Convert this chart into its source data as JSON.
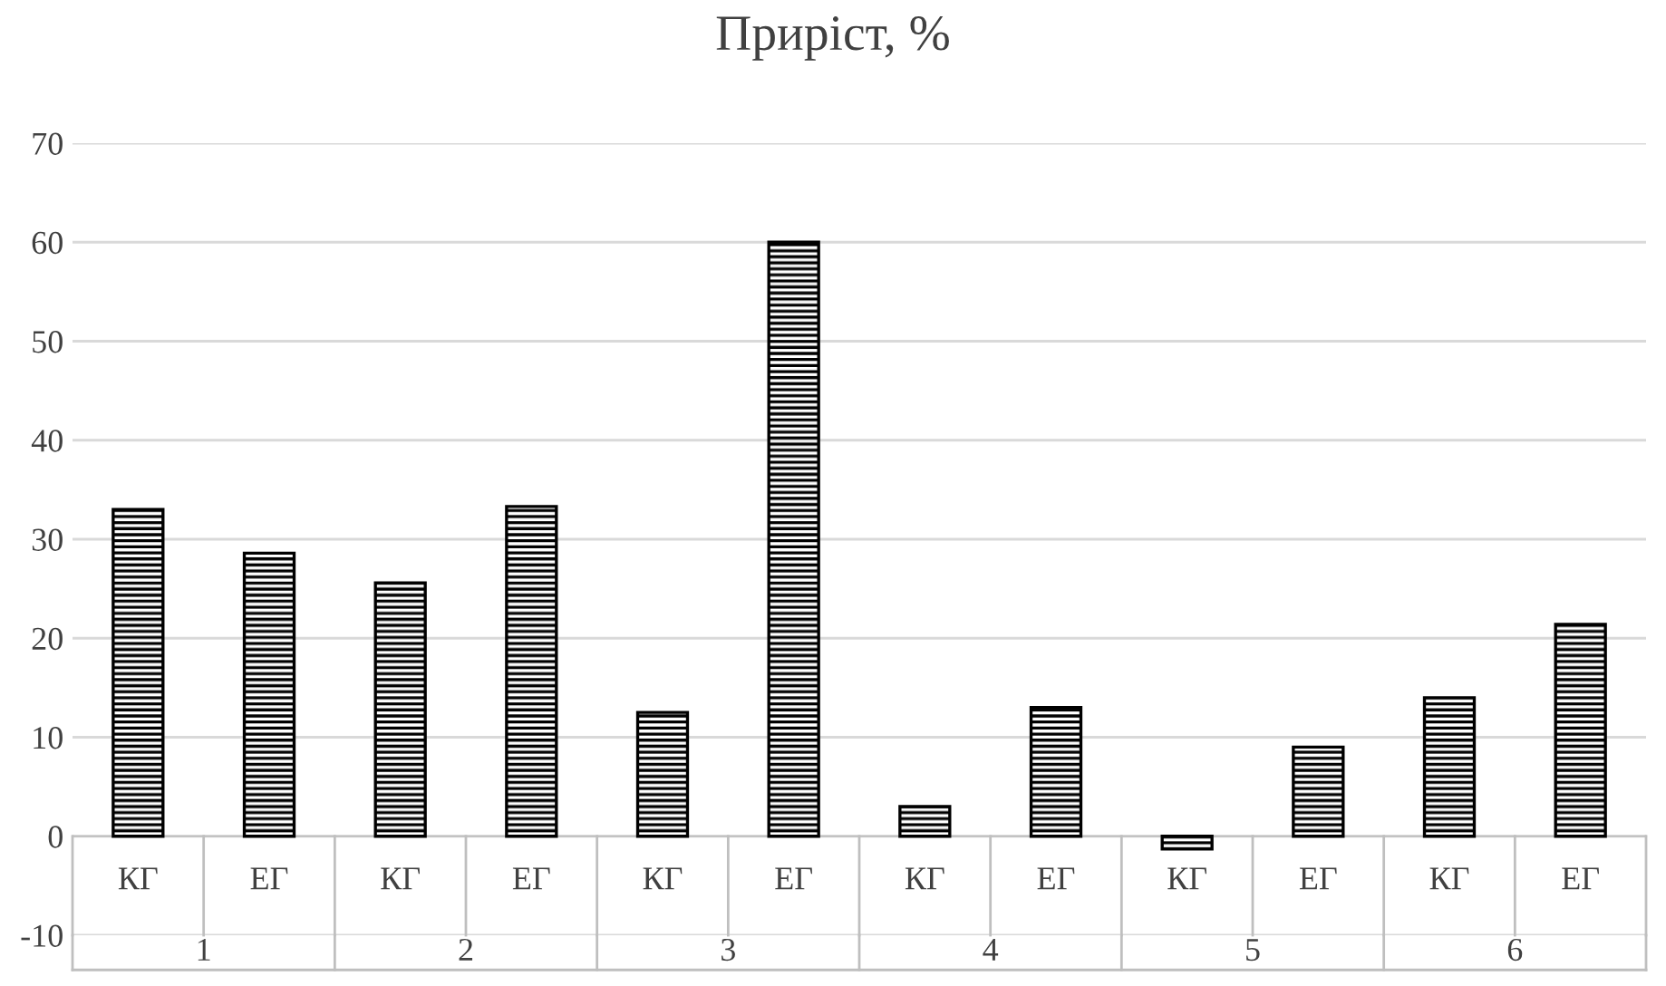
{
  "chart_data": {
    "type": "bar",
    "title": "Приріст, %",
    "categories": [
      "КГ",
      "ЕГ",
      "КГ",
      "ЕГ",
      "КГ",
      "ЕГ",
      "КГ",
      "ЕГ",
      "КГ",
      "ЕГ",
      "КГ",
      "ЕГ"
    ],
    "values": [
      33,
      28.6,
      25.6,
      33.3,
      12.5,
      60,
      3,
      13,
      -1.3,
      9,
      14,
      21.4
    ],
    "color": "#000000",
    "annotations": [
      "1",
      "2",
      "3",
      "4",
      "5",
      "6"
    ],
    "ylim": [
      -10,
      70
    ],
    "yticks": [
      -10,
      0,
      10,
      20,
      30,
      40,
      50,
      60,
      70
    ],
    "grid": "y"
  }
}
